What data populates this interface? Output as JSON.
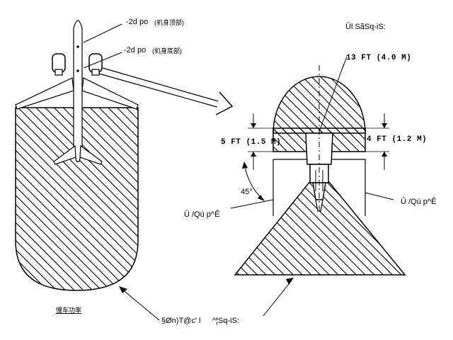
{
  "labels": {
    "antenna_top": "-2d po",
    "antenna_top_note": "(机身顶部)",
    "antenna_bottom": "-2d po",
    "antenna_bottom_note": "(机身底部)",
    "zone_top_title": "Ûl SãSq-iS:",
    "dim_13ft": "13 FT (4.0 M)",
    "dim_5ft": "5 FT (1.5 M)",
    "dim_4ft": "4 FT (1.2 M)",
    "angle": "45°",
    "zone_left": "Û /Qú p^Ê",
    "zone_right": "Û /Qú p^Ê",
    "legend_left": "慢车功率",
    "bottom_caption_left": "§Øn)T@c' l",
    "bottom_caption_right": "^¦Sq-iS:"
  },
  "colors": {
    "line": "#000000",
    "background": "#ffffff"
  }
}
